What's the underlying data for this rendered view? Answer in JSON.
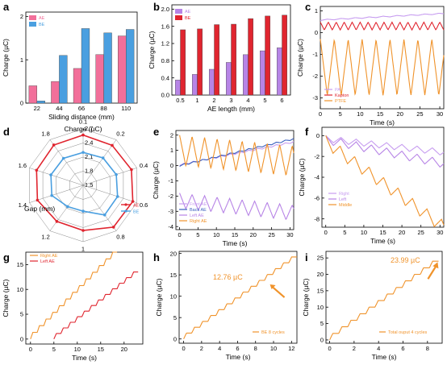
{
  "colors": {
    "pink": "#f26f9a",
    "blue": "#4a9fe0",
    "orange": "#f0932b",
    "red": "#e0252f",
    "purple": "#b784e6",
    "violet": "#c79df0",
    "navy": "#3a5fbf"
  },
  "panels": {
    "a": {
      "label": "a",
      "xlabel": "Sliding distance (mm)",
      "ylabel": "Charge (µC)",
      "yticks": [
        "0",
        "1",
        "2"
      ],
      "chart_data": {
        "type": "bar",
        "categories": [
          "22",
          "44",
          "66",
          "88",
          "110"
        ],
        "ylim": [
          0,
          2.1
        ],
        "series": [
          {
            "name": "AE",
            "values": [
              0.4,
              0.5,
              0.8,
              1.12,
              1.55
            ]
          },
          {
            "name": "BE",
            "values": [
              0.05,
              1.1,
              1.72,
              1.62,
              1.7
            ]
          }
        ],
        "legend": "top-left"
      }
    },
    "b": {
      "label": "b",
      "xlabel": "AE length (mm)",
      "ylabel": "Charge (µC)",
      "yticks": [
        "0.0",
        "0.4",
        "0.8",
        "1.2",
        "1.6",
        "2.0"
      ],
      "chart_data": {
        "type": "bar",
        "categories": [
          "0.5",
          "1",
          "2",
          "3",
          "4",
          "5",
          "6"
        ],
        "ylim": [
          0,
          2.1
        ],
        "series": [
          {
            "name": "AE",
            "values": [
              0.35,
              0.48,
              0.6,
              0.76,
              0.94,
              1.03,
              1.1
            ]
          },
          {
            "name": "BE",
            "values": [
              1.52,
              1.54,
              1.64,
              1.65,
              1.78,
              1.84,
              1.86
            ]
          }
        ],
        "legend": "top-left"
      }
    },
    "c": {
      "label": "c",
      "xlabel": "Time (s)",
      "ylabel": "Charge (µC)",
      "xticks": [
        "0",
        "5",
        "10",
        "15",
        "20",
        "25",
        "30"
      ],
      "yticks": [
        "-3",
        "-2",
        "-1",
        "0",
        "1"
      ],
      "chart_data": {
        "type": "line",
        "xlim": [
          0,
          31
        ],
        "ylim": [
          -3.5,
          1.2
        ],
        "series": [
          {
            "name": "PA",
            "kind": "trend",
            "start": 0.55,
            "end": 0.85,
            "amp": 0.05,
            "period": 3.5,
            "min_frac": 0.0
          },
          {
            "name": "Kapton",
            "kind": "wave",
            "center": 0.3,
            "amp": 0.18,
            "period": 2.0
          },
          {
            "name": "PTFE",
            "kind": "wave",
            "center": -1.6,
            "amp": 1.3,
            "period": 3.5
          }
        ],
        "legend": "bottom-left"
      }
    },
    "d": {
      "label": "d",
      "title": "Charge (µC)",
      "axis_label": "Gap (mm)",
      "spokes": [
        "0.1",
        "0.2",
        "0.4",
        "0.6",
        "0.8",
        "1",
        "1.2",
        "1.4",
        "1.6",
        "1.8"
      ],
      "rings": [
        "1.5",
        "1.8",
        "2.1",
        "2.4",
        "2.7"
      ],
      "chart_data": {
        "type": "radar",
        "rmin": 1.5,
        "rmax": 2.7,
        "series": [
          {
            "name": "AE",
            "values": [
              2.57,
              2.55,
              2.58,
              2.61,
              2.6,
              2.46,
              2.45,
              2.52,
              2.54,
              2.56
            ]
          },
          {
            "name": "BE",
            "values": [
              2.2,
              2.22,
              2.24,
              2.27,
              2.28,
              2.05,
              2.06,
              2.2,
              2.22,
              2.21
            ]
          }
        ],
        "legend": "bottom-right"
      }
    },
    "e": {
      "label": "e",
      "xlabel": "Time (s)",
      "ylabel": "Charge (µC)",
      "xticks": [
        "0",
        "5",
        "10",
        "15",
        "20",
        "25",
        "30"
      ],
      "yticks": [
        "-4",
        "-3",
        "-2",
        "-1",
        "0",
        "1",
        "2"
      ],
      "chart_data": {
        "type": "line",
        "xlim": [
          -1,
          31
        ],
        "ylim": [
          -4.2,
          2.3
        ],
        "series": [
          {
            "name": "Front  AE",
            "kind": "trend",
            "start": 0.0,
            "end": 1.5,
            "amp": 0.1,
            "period": 2.5,
            "min_frac": 0.2
          },
          {
            "name": "Back  AE",
            "kind": "trend",
            "start": -0.05,
            "end": 1.7,
            "amp": 0.1,
            "period": 2.5,
            "min_frac": 0.2
          },
          {
            "name": "Left  AE",
            "kind": "saw",
            "start": -1.8,
            "end": -2.6,
            "amp": 1.0,
            "period": 3.4
          },
          {
            "name": "Right  AE",
            "kind": "saw",
            "start": 2.0,
            "end": 1.3,
            "amp": 2.0,
            "period": 3.4
          }
        ],
        "legend": "bottom-left"
      }
    },
    "f": {
      "label": "f",
      "xlabel": "Time (s)",
      "ylabel": "Charge (µC)",
      "xticks": [
        "0",
        "5",
        "10",
        "15",
        "20",
        "25",
        "30"
      ],
      "yticks": [
        "-8",
        "-6",
        "-4",
        "-2",
        "0"
      ],
      "chart_data": {
        "type": "line",
        "xlim": [
          -1,
          31
        ],
        "ylim": [
          -8.8,
          0.8
        ],
        "series": [
          {
            "name": "Right",
            "kind": "saw",
            "start": 0.0,
            "end": -1.3,
            "amp": 0.6,
            "period": 4.0
          },
          {
            "name": "Left",
            "kind": "saw",
            "start": 0.0,
            "end": -2.3,
            "amp": 0.8,
            "period": 4.0
          },
          {
            "name": "Middle",
            "kind": "saw",
            "start": 0.0,
            "end": -8.2,
            "amp": 1.2,
            "period": 3.8
          }
        ],
        "legend": "bottom-left"
      }
    },
    "g": {
      "label": "g",
      "xlabel": "Time (s)",
      "ylabel": "Charge (µC)",
      "xticks": [
        "0",
        "5",
        "10",
        "15",
        "20"
      ],
      "yticks": [
        "0",
        "5",
        "10",
        "15"
      ],
      "chart_data": {
        "type": "line",
        "xlim": [
          -1,
          24
        ],
        "ylim": [
          -1,
          17.5
        ],
        "series": [
          {
            "name": "Right  AE",
            "kind": "stair",
            "t0": 0,
            "t1": 18.5,
            "start": 0,
            "end": 17.5,
            "steps": 13
          },
          {
            "name": "Left  AE",
            "kind": "stair",
            "t0": 5,
            "t1": 23,
            "start": 0,
            "end": 13.5,
            "steps": 12
          }
        ],
        "legend": "top-left"
      }
    },
    "h": {
      "label": "h",
      "xlabel": "Time (s)",
      "ylabel": "Charge (µC)",
      "xticks": [
        "0",
        "2",
        "4",
        "6",
        "8",
        "10",
        "12"
      ],
      "yticks": [
        "0",
        "5",
        "10",
        "15",
        "20"
      ],
      "annotation": "12.76 µC",
      "legend_note": "BE 8 cycles",
      "chart_data": {
        "type": "line",
        "xlim": [
          -0.5,
          12.6
        ],
        "ylim": [
          -1,
          20.5
        ],
        "series": [
          {
            "name": "BE 8 cycles",
            "kind": "stair",
            "t0": 0,
            "t1": 12.6,
            "start": 0,
            "end": 19.2,
            "steps": 14
          }
        ],
        "annotation_point": [
          9.6,
          12.76
        ],
        "legend": "bottom-right"
      }
    },
    "i": {
      "label": "i",
      "xlabel": "Time (s)",
      "ylabel": "Charge (µC)",
      "xticks": [
        "0",
        "2",
        "4",
        "6",
        "8"
      ],
      "yticks": [
        "0",
        "5",
        "10",
        "15",
        "20",
        "25"
      ],
      "annotation": "23.99 µC",
      "legend_note": "Total ouput 4 cycles",
      "chart_data": {
        "type": "line",
        "xlim": [
          -0.3,
          9.2
        ],
        "ylim": [
          -1,
          27
        ],
        "series": [
          {
            "name": "Total ouput 4 cycles",
            "kind": "stair",
            "t0": 0,
            "t1": 8.9,
            "start": 0,
            "end": 24,
            "steps": 12
          }
        ],
        "annotation_point": [
          8.7,
          23.99
        ],
        "legend": "bottom-right"
      }
    }
  }
}
